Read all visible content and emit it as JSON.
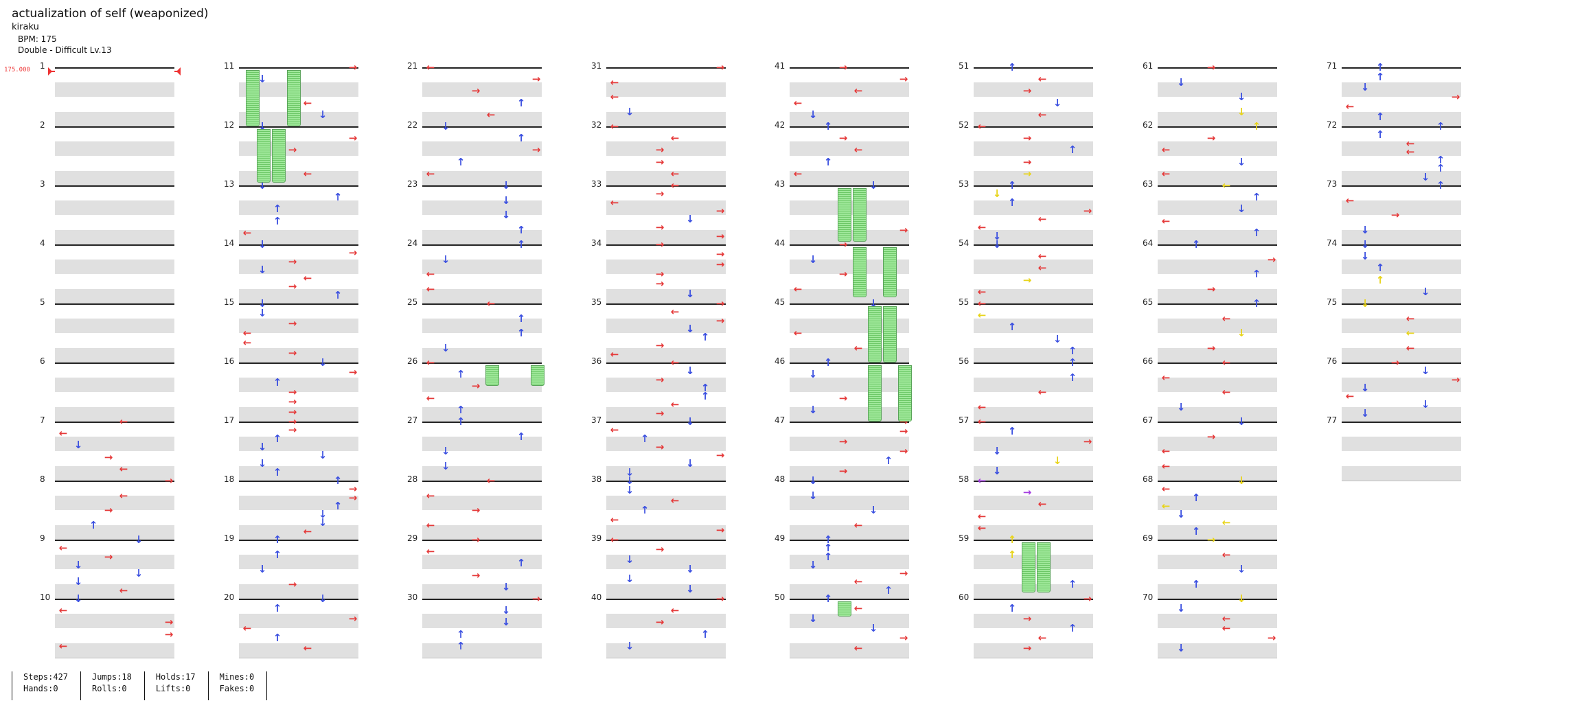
{
  "song": {
    "title": "actualization of self (weaponized)",
    "artist": "kiraku",
    "bpm_label": "BPM: 175",
    "difficulty_label": "Double - Difficult  Lv.13"
  },
  "bpm_marker": "175.000",
  "colors": {
    "red": "#e53a3a",
    "blue": "#3a4fe0",
    "yellow": "#e8d41a",
    "purple": "#a43ee0",
    "hold": "#9fe89a"
  },
  "measure_numbers": [
    [
      "1",
      "2",
      "3",
      "4",
      "5",
      "6",
      "7",
      "8",
      "9",
      "10"
    ],
    [
      "11",
      "12",
      "13",
      "14",
      "15",
      "16",
      "17",
      "18",
      "19",
      "20"
    ],
    [
      "21",
      "22",
      "23",
      "24",
      "25",
      "26",
      "27",
      "28",
      "29",
      "30"
    ],
    [
      "31",
      "32",
      "33",
      "34",
      "35",
      "36",
      "37",
      "38",
      "39",
      "40"
    ],
    [
      "41",
      "42",
      "43",
      "44",
      "45",
      "46",
      "47",
      "48",
      "49",
      "50"
    ],
    [
      "51",
      "52",
      "53",
      "54",
      "55",
      "56",
      "57",
      "58",
      "59",
      "60"
    ],
    [
      "61",
      "62",
      "63",
      "64",
      "65",
      "66",
      "67",
      "68",
      "69",
      "70"
    ],
    [
      "71",
      "72",
      "73",
      "74",
      "75",
      "76",
      "77"
    ]
  ],
  "stats": [
    {
      "line1": "Steps:427",
      "line2": "Hands:0"
    },
    {
      "line1": "Jumps:18",
      "line2": "Rolls:0"
    },
    {
      "line1": "Holds:17",
      "line2": "Lifts:0"
    },
    {
      "line1": "Mines:0",
      "line2": "Fakes:0"
    }
  ]
}
